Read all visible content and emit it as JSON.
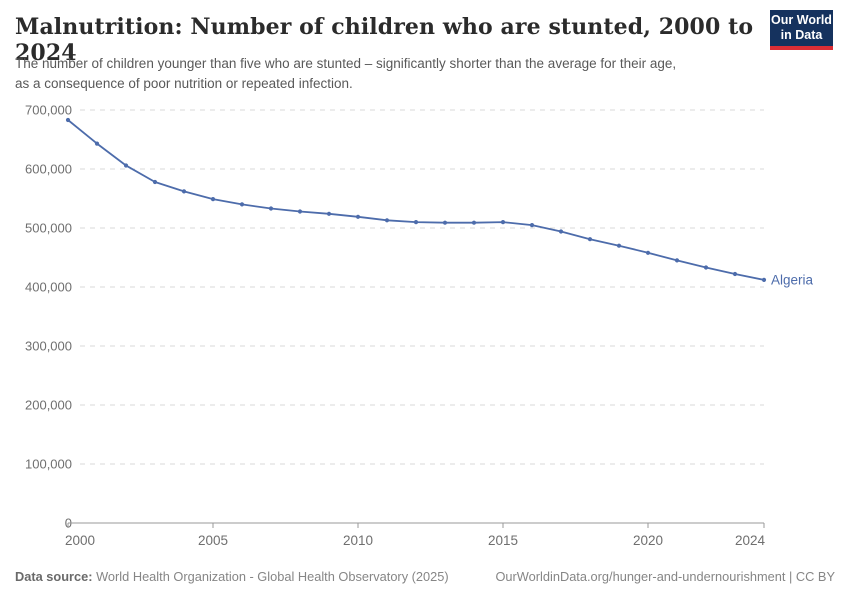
{
  "header": {
    "title": "Malnutrition: Number of children who are stunted, 2000 to 2024",
    "subtitle_line1": "The number of children younger than five who are stunted – significantly shorter than the average for their age,",
    "subtitle_line2": "as a consequence of poor nutrition or repeated infection.",
    "logo": {
      "line1": "Our World",
      "line2": "in Data",
      "bg_color": "#15325e",
      "accent_color": "#dc2e35"
    }
  },
  "chart_data": {
    "type": "line",
    "title": "Malnutrition: Number of children who are stunted, 2000 to 2024",
    "xlabel": "",
    "ylabel": "",
    "xlim": [
      2000,
      2024
    ],
    "ylim": [
      0,
      700000
    ],
    "grid": "horizontal-dashed",
    "legend_position": "end-of-line-label",
    "xticks": {
      "values": [
        2000,
        2005,
        2010,
        2015,
        2020,
        2024
      ],
      "labels": [
        "2000",
        "2005",
        "2010",
        "2015",
        "2020",
        "2024"
      ]
    },
    "yticks": {
      "values": [
        0,
        100000,
        200000,
        300000,
        400000,
        500000,
        600000,
        700000
      ],
      "labels": [
        "0",
        "100,000",
        "200,000",
        "300,000",
        "400,000",
        "500,000",
        "600,000",
        "700,000"
      ]
    },
    "series": [
      {
        "name": "Algeria",
        "color": "#4d6cab",
        "x": [
          2000,
          2001,
          2002,
          2003,
          2004,
          2005,
          2006,
          2007,
          2008,
          2009,
          2010,
          2011,
          2012,
          2013,
          2014,
          2015,
          2016,
          2017,
          2018,
          2019,
          2020,
          2021,
          2022,
          2023,
          2024
        ],
        "values": [
          683000,
          643000,
          606000,
          578000,
          562000,
          549000,
          540000,
          533000,
          528000,
          524000,
          519000,
          513000,
          510000,
          509000,
          509000,
          510000,
          505000,
          494000,
          481000,
          470000,
          458000,
          445000,
          433000,
          422000,
          412000
        ]
      }
    ],
    "colors": {
      "gridline": "#d9d9d9",
      "axis": "#999999",
      "tick_label": "#6f6f6f"
    }
  },
  "footer": {
    "datasource_label": "Data source:",
    "datasource_text": " World Health Organization - Global Health Observatory (2025)",
    "link_text": "OurWorldinData.org/hunger-and-undernourishment | CC BY"
  }
}
